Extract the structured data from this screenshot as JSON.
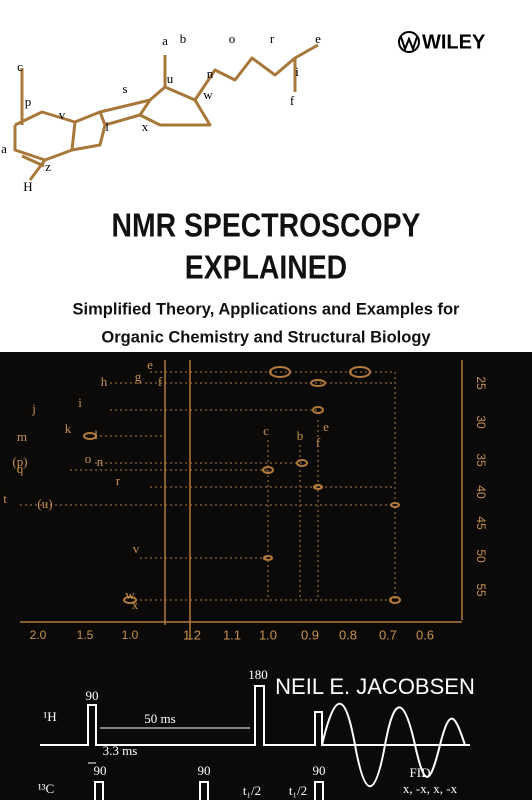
{
  "publisher": "WILEY",
  "structure_labels": [
    "a",
    "b",
    "o",
    "r",
    "e",
    "c",
    "u",
    "n",
    "i",
    "w",
    "p",
    "s",
    "v",
    "l",
    "x",
    "f",
    "a",
    "z",
    "H"
  ],
  "title": [
    "NMR SPECTROSCOPY",
    "EXPLAINED"
  ],
  "subtitle": [
    "Simplified Theory, Applications and Examples for",
    "Organic Chemistry and Structural Biology"
  ],
  "spectrum": {
    "peak_labels": [
      "e",
      "h",
      "g",
      "f",
      "j",
      "i",
      "m",
      "k",
      "l",
      "(p)",
      "o",
      "n",
      "q",
      "r",
      "t",
      "(u)",
      "c",
      "b",
      "e",
      "f",
      "v",
      "w",
      "x"
    ],
    "vertical_axis": [
      "25",
      "30",
      "35",
      "40",
      "45",
      "50",
      "55"
    ],
    "left_axis": [
      "2.0",
      "1.5",
      "1.0"
    ],
    "right_axis": [
      "1.2",
      "1.1",
      "1.0",
      "0.9",
      "0.8",
      "0.7",
      "0.6"
    ]
  },
  "author": "NEIL E. JACOBSEN",
  "pulse_sequence": {
    "labels": [
      "¹H",
      "90",
      "180",
      "50 ms",
      "3.3 ms",
      "¹³C",
      "90",
      "90",
      "90",
      "t₁/2",
      "t₁/2",
      "FID",
      "x, -x, x, -x"
    ]
  }
}
